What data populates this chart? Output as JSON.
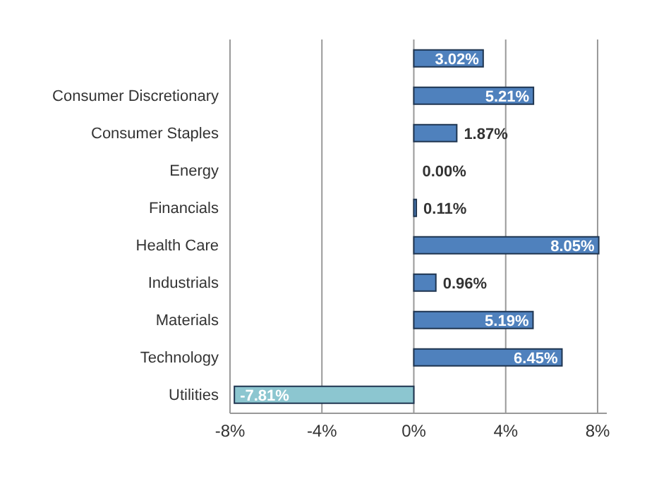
{
  "chart_data": {
    "type": "bar",
    "orientation": "horizontal",
    "categories": [
      null,
      "Consumer Discretionary",
      "Consumer Staples",
      "Energy",
      "Financials",
      "Health Care",
      "Industrials",
      "Materials",
      "Technology",
      "Utilities"
    ],
    "values": [
      3.02,
      5.21,
      1.87,
      0.0,
      0.11,
      8.05,
      0.96,
      5.19,
      6.45,
      -7.81
    ],
    "colors": [
      "#4f81bd",
      "#4f81bd",
      "#4f81bd",
      "#4f81bd",
      "#4f81bd",
      "#4f81bd",
      "#4f81bd",
      "#4f81bd",
      "#4f81bd",
      "#8cc6d0"
    ],
    "value_labels": [
      "3.02%",
      "5.21%",
      "1.87%",
      "0.00%",
      "0.11%",
      "8.05%",
      "0.96%",
      "5.19%",
      "6.45%",
      "-7.81%"
    ],
    "xlim": [
      -8,
      8.4
    ],
    "xticks": [
      {
        "value": -8,
        "label": "-8%"
      },
      {
        "value": -4,
        "label": "-4%"
      },
      {
        "value": 0,
        "label": "0%"
      },
      {
        "value": 4,
        "label": "4%"
      },
      {
        "value": 8,
        "label": "8%"
      }
    ],
    "grid": "x",
    "legend": false
  }
}
